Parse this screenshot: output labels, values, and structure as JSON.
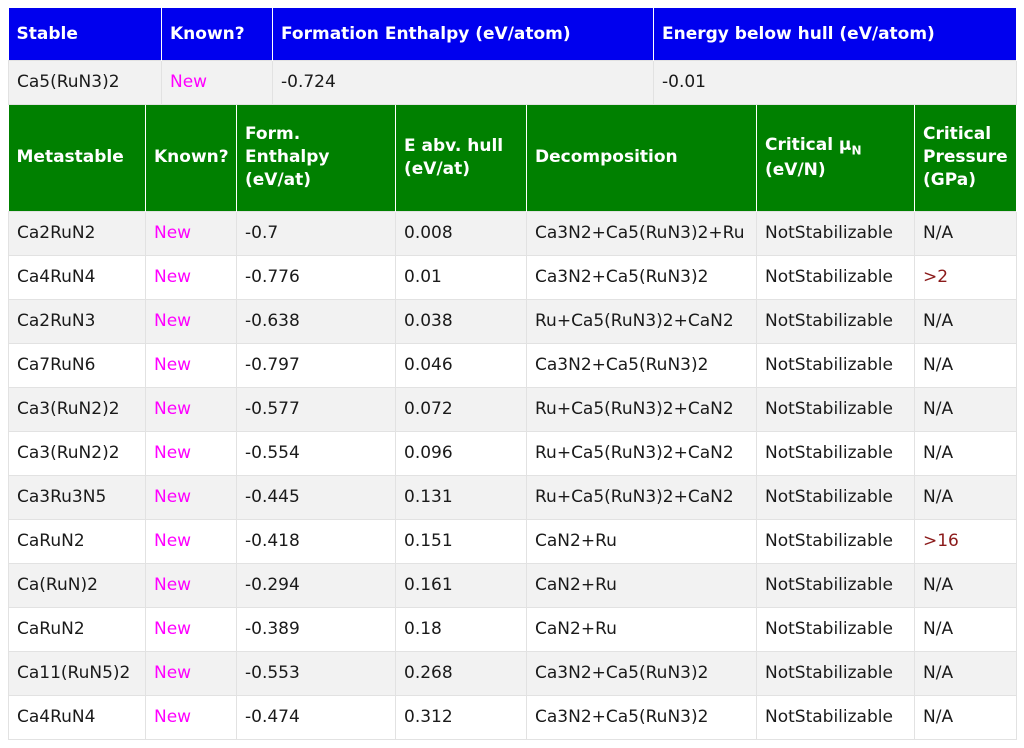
{
  "stable_table": {
    "headers": [
      "Stable",
      "Known?",
      "Formation Enthalpy (eV/atom)",
      "Energy below hull (eV/atom)"
    ],
    "rows": [
      {
        "compound": "Ca5(RuN3)2",
        "known": "New",
        "formation_enthalpy": "-0.724",
        "energy_below_hull": "-0.01"
      }
    ]
  },
  "metastable_table": {
    "headers": {
      "metastable": "Metastable",
      "known": "Known?",
      "form_enthalpy_1": "Form.",
      "form_enthalpy_2": "Enthalpy",
      "form_enthalpy_3": "(eV/at)",
      "e_hull_1": "E abv. hull",
      "e_hull_2": "(eV/at)",
      "decomposition": "Decomposition",
      "critical_mu_1": "Critical μ",
      "critical_mu_sub": "N",
      "critical_mu_2": "(eV/N)",
      "critical_pressure_1": "Critical",
      "critical_pressure_2": "Pressure",
      "critical_pressure_3": "(GPa)"
    },
    "rows": [
      {
        "compound": "Ca2RuN2",
        "known": "New",
        "form_enthalpy": "-0.7",
        "e_hull": "0.008",
        "decomposition": "Ca3N2+Ca5(RuN3)2+Ru",
        "critical_mu": "NotStabilizable",
        "critical_pressure": "N/A"
      },
      {
        "compound": "Ca4RuN4",
        "known": "New",
        "form_enthalpy": "-0.776",
        "e_hull": "0.01",
        "decomposition": "Ca3N2+Ca5(RuN3)2",
        "critical_mu": "NotStabilizable",
        "critical_pressure": ">2"
      },
      {
        "compound": "Ca2RuN3",
        "known": "New",
        "form_enthalpy": "-0.638",
        "e_hull": "0.038",
        "decomposition": "Ru+Ca5(RuN3)2+CaN2",
        "critical_mu": "NotStabilizable",
        "critical_pressure": "N/A"
      },
      {
        "compound": "Ca7RuN6",
        "known": "New",
        "form_enthalpy": "-0.797",
        "e_hull": "0.046",
        "decomposition": "Ca3N2+Ca5(RuN3)2",
        "critical_mu": "NotStabilizable",
        "critical_pressure": "N/A"
      },
      {
        "compound": "Ca3(RuN2)2",
        "known": "New",
        "form_enthalpy": "-0.577",
        "e_hull": "0.072",
        "decomposition": "Ru+Ca5(RuN3)2+CaN2",
        "critical_mu": "NotStabilizable",
        "critical_pressure": "N/A"
      },
      {
        "compound": "Ca3(RuN2)2",
        "known": "New",
        "form_enthalpy": "-0.554",
        "e_hull": "0.096",
        "decomposition": "Ru+Ca5(RuN3)2+CaN2",
        "critical_mu": "NotStabilizable",
        "critical_pressure": "N/A"
      },
      {
        "compound": "Ca3Ru3N5",
        "known": "New",
        "form_enthalpy": "-0.445",
        "e_hull": "0.131",
        "decomposition": "Ru+Ca5(RuN3)2+CaN2",
        "critical_mu": "NotStabilizable",
        "critical_pressure": "N/A"
      },
      {
        "compound": "CaRuN2",
        "known": "New",
        "form_enthalpy": "-0.418",
        "e_hull": "0.151",
        "decomposition": "CaN2+Ru",
        "critical_mu": "NotStabilizable",
        "critical_pressure": ">16"
      },
      {
        "compound": "Ca(RuN)2",
        "known": "New",
        "form_enthalpy": "-0.294",
        "e_hull": "0.161",
        "decomposition": "CaN2+Ru",
        "critical_mu": "NotStabilizable",
        "critical_pressure": "N/A"
      },
      {
        "compound": "CaRuN2",
        "known": "New",
        "form_enthalpy": "-0.389",
        "e_hull": "0.18",
        "decomposition": "CaN2+Ru",
        "critical_mu": "NotStabilizable",
        "critical_pressure": "N/A"
      },
      {
        "compound": "Ca11(RuN5)2",
        "known": "New",
        "form_enthalpy": "-0.553",
        "e_hull": "0.268",
        "decomposition": "Ca3N2+Ca5(RuN3)2",
        "critical_mu": "NotStabilizable",
        "critical_pressure": "N/A"
      },
      {
        "compound": "Ca4RuN4",
        "known": "New",
        "form_enthalpy": "-0.474",
        "e_hull": "0.312",
        "decomposition": "Ca3N2+Ca5(RuN3)2",
        "critical_mu": "NotStabilizable",
        "critical_pressure": "N/A"
      }
    ]
  },
  "colors": {
    "stable_header": "#0000ee",
    "metastable_header": "#008000",
    "known_new": "#ff00ff",
    "pressure_bound": "#8b1a1a"
  }
}
